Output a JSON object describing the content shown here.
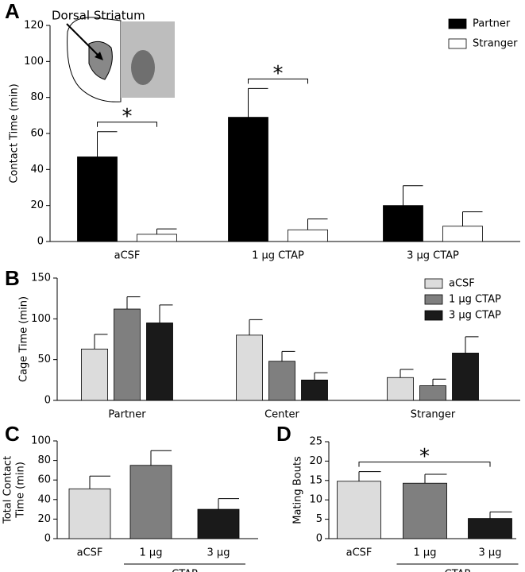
{
  "chart_data": [
    {
      "type": "bar",
      "panel": "A",
      "inset_label": "Dorsal Striatum",
      "ylabel": [
        "Contact Time (min)"
      ],
      "categories": [
        "aCSF",
        "1 μg CTAP",
        "3 μg CTAP"
      ],
      "series": [
        {
          "name": "Partner",
          "color": "#000000",
          "values": [
            47,
            69,
            20
          ],
          "errors": [
            14,
            16,
            11
          ]
        },
        {
          "name": "Stranger",
          "color": "#ffffff",
          "values": [
            4,
            6.5,
            8.5
          ],
          "errors": [
            3,
            6,
            8
          ]
        }
      ],
      "ylim": [
        0,
        120
      ],
      "yticks": [
        0,
        20,
        40,
        60,
        80,
        100,
        120
      ],
      "legend": "upper right",
      "significance": [
        {
          "label": "*",
          "from": 0,
          "to": 0
        },
        {
          "label": "*",
          "from": 1,
          "to": 1
        }
      ]
    },
    {
      "type": "bar",
      "panel": "B",
      "ylabel": [
        "Cage Time (min)"
      ],
      "categories": [
        "Partner",
        "Center",
        "Stranger"
      ],
      "series": [
        {
          "name": "aCSF",
          "color": "#dcdcdc",
          "values": [
            63,
            80,
            28
          ],
          "errors": [
            18,
            19,
            10
          ]
        },
        {
          "name": "1 μg CTAP",
          "color": "#7f7f7f",
          "values": [
            112,
            48,
            18
          ],
          "errors": [
            15,
            12,
            8
          ]
        },
        {
          "name": "3 μg CTAP",
          "color": "#1a1a1a",
          "values": [
            95,
            25,
            58
          ],
          "errors": [
            22,
            9,
            20
          ]
        }
      ],
      "ylim": [
        0,
        150
      ],
      "yticks": [
        0,
        50,
        100,
        150
      ],
      "legend": "upper right"
    },
    {
      "type": "bar",
      "panel": "C",
      "ylabel": [
        "Total Contact",
        "Time (min)"
      ],
      "categories": [
        "aCSF",
        "1 μg",
        "3 μg"
      ],
      "series": [
        {
          "colors": [
            "#dcdcdc",
            "#7f7f7f",
            "#1a1a1a"
          ],
          "values": [
            51,
            75,
            30
          ],
          "errors": [
            13,
            15,
            11
          ]
        }
      ],
      "ylim": [
        0,
        100
      ],
      "yticks": [
        0,
        20,
        40,
        60,
        80,
        100
      ],
      "group": {
        "label": "CTAP",
        "from": 1,
        "to": 2
      }
    },
    {
      "type": "bar",
      "panel": "D",
      "ylabel": [
        "Mating Bouts"
      ],
      "categories": [
        "aCSF",
        "1 μg",
        "3 μg"
      ],
      "series": [
        {
          "colors": [
            "#dcdcdc",
            "#7f7f7f",
            "#1a1a1a"
          ],
          "values": [
            14.8,
            14.3,
            5.2
          ],
          "errors": [
            2.5,
            2.3,
            1.7
          ]
        }
      ],
      "ylim": [
        0,
        25
      ],
      "yticks": [
        0,
        5,
        10,
        15,
        20,
        25
      ],
      "group": {
        "label": "CTAP",
        "from": 1,
        "to": 2
      },
      "significance": [
        {
          "label": "*",
          "from": 0,
          "to": 2
        }
      ]
    }
  ]
}
